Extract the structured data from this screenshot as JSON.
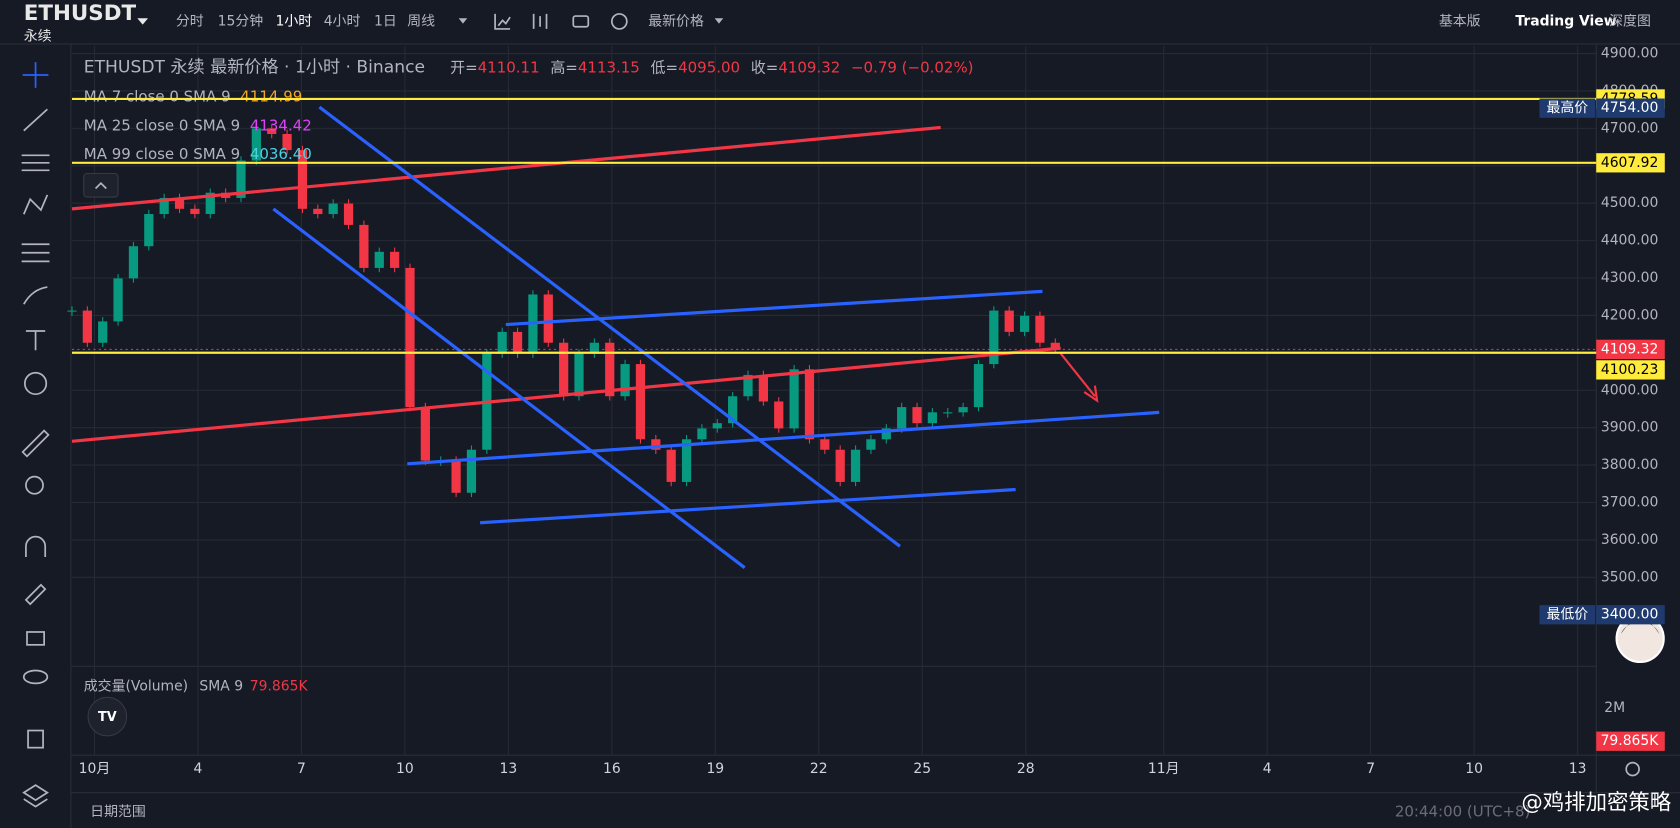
{
  "header": {
    "symbol": "ETHUSDT",
    "contract": "永续",
    "intervals": [
      "分时",
      "15分钟",
      "1小时",
      "4小时",
      "1日",
      "周线"
    ],
    "price_type": "最新价格",
    "views": [
      "基本版",
      "Trading View",
      "深度图"
    ]
  },
  "legend": {
    "title": "ETHUSDT 永续 最新价格 · 1小时 · Binance",
    "ohlc": [
      {
        "label": "开=",
        "value": "4110.11"
      },
      {
        "label": "高=",
        "value": "4113.15"
      },
      {
        "label": "低=",
        "value": "4095.00"
      },
      {
        "label": "收=",
        "value": "4109.32"
      }
    ],
    "change": "−0.79 (−0.02%)",
    "indicators": [
      {
        "name": "MA 7 close 0 SMA 9",
        "value": "4114.99",
        "color": "#f5a623"
      },
      {
        "name": "MA 25 close 0 SMA 9",
        "value": "4134.42",
        "color": "#e040fb"
      },
      {
        "name": "MA 99 close 0 SMA 9",
        "value": "4036.40",
        "color": "#4dd0e1"
      }
    ]
  },
  "chart_data": {
    "type": "candlestick",
    "closes": [
      4213,
      4127,
      4184,
      4299,
      4385,
      4471,
      4514,
      4485,
      4471,
      4528,
      4514,
      4614,
      4700,
      4685,
      4642,
      4485,
      4471,
      4499,
      4442,
      4327,
      4370,
      4327,
      3955,
      3812,
      3812,
      3726,
      3841,
      4098,
      4156,
      4098,
      4256,
      4127,
      3984,
      4098,
      4127,
      3984,
      4070,
      3869,
      3841,
      3755,
      3869,
      3898,
      3912,
      3984,
      4041,
      3970,
      3898,
      4056,
      3869,
      3841,
      3755,
      3841,
      3869,
      3898,
      3955,
      3912,
      3941,
      3941,
      3955,
      4070,
      4213,
      4156,
      4199,
      4127,
      4109
    ],
    "ylim": [
      3268,
      4920
    ],
    "yticks": [
      {
        "value": 4900,
        "label": "4900.00"
      },
      {
        "value": 4800,
        "label": "4800.00"
      },
      {
        "value": 4700,
        "label": "4700.00"
      },
      {
        "value": 4600,
        "label": "4600.00"
      },
      {
        "value": 4500,
        "label": "4500.00"
      },
      {
        "value": 4400,
        "label": "4400.00"
      },
      {
        "value": 4300,
        "label": "4300.00"
      },
      {
        "value": 4200,
        "label": "4200.00"
      },
      {
        "value": 4100,
        "label": "4100.00"
      },
      {
        "value": 4000,
        "label": "4000.00"
      },
      {
        "value": 3900,
        "label": "3900.00"
      },
      {
        "value": 3800,
        "label": "3800.00"
      },
      {
        "value": 3700,
        "label": "3700.00"
      },
      {
        "value": 3600,
        "label": "3600.00"
      },
      {
        "value": 3500,
        "label": "3500.00"
      }
    ],
    "price_lines": [
      {
        "value": 4778.59,
        "label": "4778.59",
        "color": "#ffeb3b"
      },
      {
        "value": 4607.92,
        "label": "4607.92",
        "color": "#ffeb3b"
      },
      {
        "value": 4109.32,
        "label": "4109.32",
        "color": "#f23645"
      },
      {
        "value": 4100.23,
        "label": "4100.23",
        "color": "#ffeb3b"
      }
    ],
    "markers": [
      {
        "text": "最高价",
        "value": 4754,
        "label": "4754.00"
      },
      {
        "text": "最低价",
        "value": 3400,
        "label": "3400.00"
      }
    ],
    "x_labels": [
      "10月",
      "4",
      "7",
      "10",
      "13",
      "16",
      "19",
      "22",
      "25",
      "28",
      "11月",
      "4",
      "7",
      "10",
      "13"
    ]
  },
  "volume": {
    "title": "成交量(Volume)",
    "sma": "SMA 9",
    "value_label": "79.865K",
    "ticks": [
      {
        "value": 2000000,
        "label": "2M"
      }
    ]
  },
  "footer": {
    "range": "日期范围",
    "time": "20:44:00 (UTC+8)",
    "watermark": "@鸡排加密策略"
  }
}
